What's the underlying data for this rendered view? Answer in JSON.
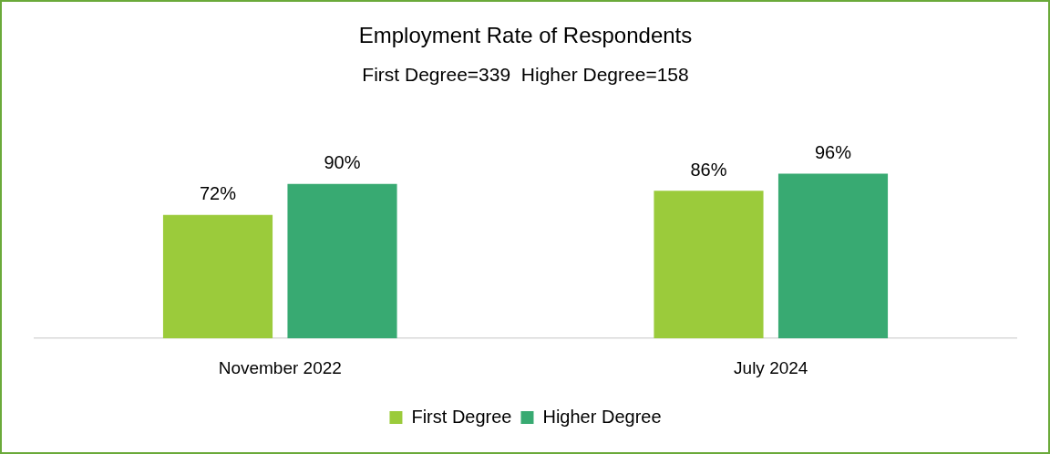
{
  "chart_data": {
    "type": "bar",
    "title": "Employment Rate of Respondents",
    "subtitle": "First Degree=339  Higher Degree=158",
    "categories": [
      "November 2022",
      "July 2024"
    ],
    "series": [
      {
        "name": "First Degree",
        "color": "#9bcb3b",
        "values": [
          72,
          86
        ],
        "value_labels": [
          "72%",
          "86%"
        ]
      },
      {
        "name": "Higher Degree",
        "color": "#38aa72",
        "values": [
          90,
          96
        ],
        "value_labels": [
          "90%",
          "96%"
        ]
      }
    ],
    "legend": "bottom",
    "grid": false
  }
}
